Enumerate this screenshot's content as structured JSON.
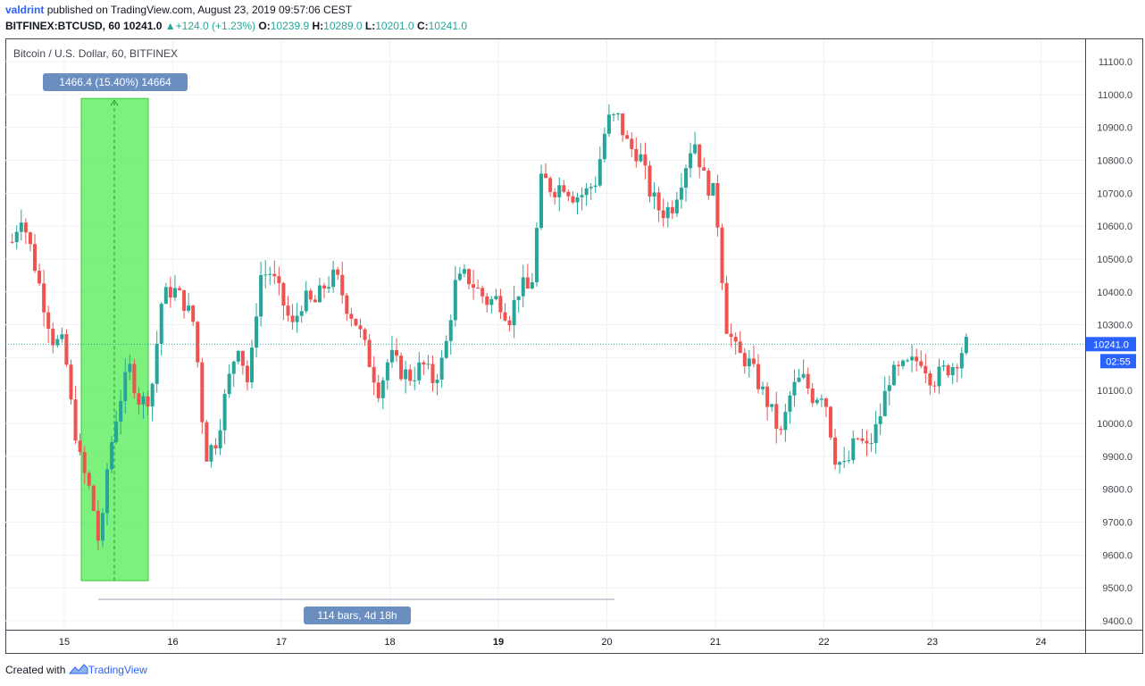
{
  "header": {
    "author": "valdrint",
    "published_text": "published on TradingView.com, August 23, 2019 09:57:06 CEST",
    "symbol_line": "BITFINEX:BTCUSD, 60",
    "last": "10241.0",
    "change": "+124.0 (+1.23%)",
    "o_label": "O:",
    "o_value": "10239.9",
    "h_label": "H:",
    "h_value": "10289.0",
    "l_label": "L:",
    "l_value": "10201.0",
    "c_label": "C:",
    "c_value": "10241.0"
  },
  "footer": {
    "created_with": "Created with",
    "brand": "TradingView"
  },
  "colors": {
    "up": "#26a69a",
    "down": "#ef5350",
    "range_fill": "#66ee66",
    "label_bg": "#6a8ec0",
    "price_tag": "#2962ff"
  },
  "chart_data": {
    "type": "candlestick",
    "title": "Bitcoin / U.S. Dollar, 60, BITFINEX",
    "xlabel": "",
    "ylabel": "",
    "ylim": [
      9400,
      11100
    ],
    "y_ticks": [
      "11100.0",
      "11000.0",
      "10900.0",
      "10800.0",
      "10700.0",
      "10600.0",
      "10500.0",
      "10400.0",
      "10300.0",
      "10200.0",
      "10100.0",
      "10000.0",
      "9900.0",
      "9800.0",
      "9700.0",
      "9600.0",
      "9500.0",
      "9400.0"
    ],
    "x_ticks": [
      "15",
      "16",
      "17",
      "18",
      "19",
      "20",
      "21",
      "22",
      "23",
      "24"
    ],
    "grid": true,
    "last_price": "10241.0",
    "countdown": "02:55",
    "measure": {
      "price_label": "1466.4 (15.40%) 14664",
      "bars_label": "114 bars, 4d 18h",
      "low": 9522,
      "high": 10988
    },
    "close_path": [
      [
        14.5,
        10530
      ],
      [
        14.6,
        10640
      ],
      [
        14.7,
        10520
      ],
      [
        14.8,
        10380
      ],
      [
        14.9,
        10250
      ],
      [
        15.0,
        10240
      ],
      [
        15.05,
        10080
      ],
      [
        15.15,
        9880
      ],
      [
        15.25,
        9780
      ],
      [
        15.33,
        9610
      ],
      [
        15.4,
        9880
      ],
      [
        15.5,
        10060
      ],
      [
        15.6,
        10170
      ],
      [
        15.7,
        10060
      ],
      [
        15.8,
        10090
      ],
      [
        15.9,
        10380
      ],
      [
        16.0,
        10410
      ],
      [
        16.1,
        10370
      ],
      [
        16.2,
        10300
      ],
      [
        16.3,
        9900
      ],
      [
        16.4,
        9950
      ],
      [
        16.5,
        10110
      ],
      [
        16.6,
        10250
      ],
      [
        16.7,
        10110
      ],
      [
        16.8,
        10450
      ],
      [
        16.9,
        10460
      ],
      [
        17.0,
        10380
      ],
      [
        17.1,
        10290
      ],
      [
        17.2,
        10380
      ],
      [
        17.3,
        10360
      ],
      [
        17.4,
        10420
      ],
      [
        17.5,
        10450
      ],
      [
        17.6,
        10360
      ],
      [
        17.7,
        10300
      ],
      [
        17.8,
        10200
      ],
      [
        17.9,
        10100
      ],
      [
        18.0,
        10210
      ],
      [
        18.1,
        10160
      ],
      [
        18.2,
        10140
      ],
      [
        18.3,
        10180
      ],
      [
        18.4,
        10130
      ],
      [
        18.5,
        10200
      ],
      [
        18.6,
        10420
      ],
      [
        18.7,
        10450
      ],
      [
        18.8,
        10410
      ],
      [
        18.9,
        10370
      ],
      [
        19.0,
        10380
      ],
      [
        19.1,
        10320
      ],
      [
        19.2,
        10420
      ],
      [
        19.3,
        10400
      ],
      [
        19.4,
        10750
      ],
      [
        19.5,
        10710
      ],
      [
        19.6,
        10730
      ],
      [
        19.7,
        10690
      ],
      [
        19.8,
        10700
      ],
      [
        19.9,
        10740
      ],
      [
        20.0,
        10920
      ],
      [
        20.1,
        10930
      ],
      [
        20.2,
        10840
      ],
      [
        20.3,
        10820
      ],
      [
        20.4,
        10700
      ],
      [
        20.5,
        10640
      ],
      [
        20.6,
        10660
      ],
      [
        20.7,
        10760
      ],
      [
        20.8,
        10870
      ],
      [
        20.9,
        10740
      ],
      [
        21.0,
        10690
      ],
      [
        21.1,
        10300
      ],
      [
        21.2,
        10210
      ],
      [
        21.3,
        10190
      ],
      [
        21.4,
        10120
      ],
      [
        21.5,
        10050
      ],
      [
        21.6,
        9960
      ],
      [
        21.7,
        10100
      ],
      [
        21.8,
        10140
      ],
      [
        21.9,
        10080
      ],
      [
        22.0,
        10100
      ],
      [
        22.1,
        9900
      ],
      [
        22.2,
        9860
      ],
      [
        22.3,
        9960
      ],
      [
        22.4,
        9920
      ],
      [
        22.5,
        10000
      ],
      [
        22.6,
        10140
      ],
      [
        22.7,
        10160
      ],
      [
        22.8,
        10180
      ],
      [
        22.9,
        10200
      ],
      [
        23.0,
        10130
      ],
      [
        23.1,
        10160
      ],
      [
        23.2,
        10180
      ],
      [
        23.3,
        10241
      ]
    ]
  }
}
